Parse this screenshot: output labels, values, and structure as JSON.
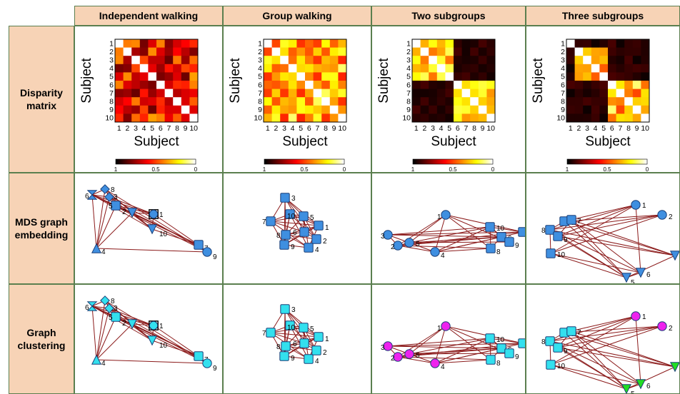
{
  "columns": [
    "Independent walking",
    "Group walking",
    "Two subgroups",
    "Three subgroups"
  ],
  "rows": [
    "Disparity matrix",
    "MDS graph embedding",
    "Graph clustering"
  ],
  "matrix": {
    "ylabel": "Subject",
    "xlabel": "Subject",
    "ticks": [
      "1",
      "2",
      "3",
      "4",
      "5",
      "6",
      "7",
      "8",
      "9",
      "10"
    ],
    "colorbar_ticks": [
      "1",
      "0.5",
      "0"
    ]
  },
  "node_labels": [
    "1",
    "2",
    "3",
    "4",
    "5",
    "6",
    "7",
    "8",
    "9",
    "10"
  ],
  "colors": {
    "header_bg": "#f7d3b6",
    "border": "#5b7f4f",
    "edge": "#8b1a1a",
    "node_blue": "#3f8fe0",
    "node_cyan": "#33e0ee",
    "node_magenta": "#ee22ee",
    "node_green": "#22dd22"
  }
}
